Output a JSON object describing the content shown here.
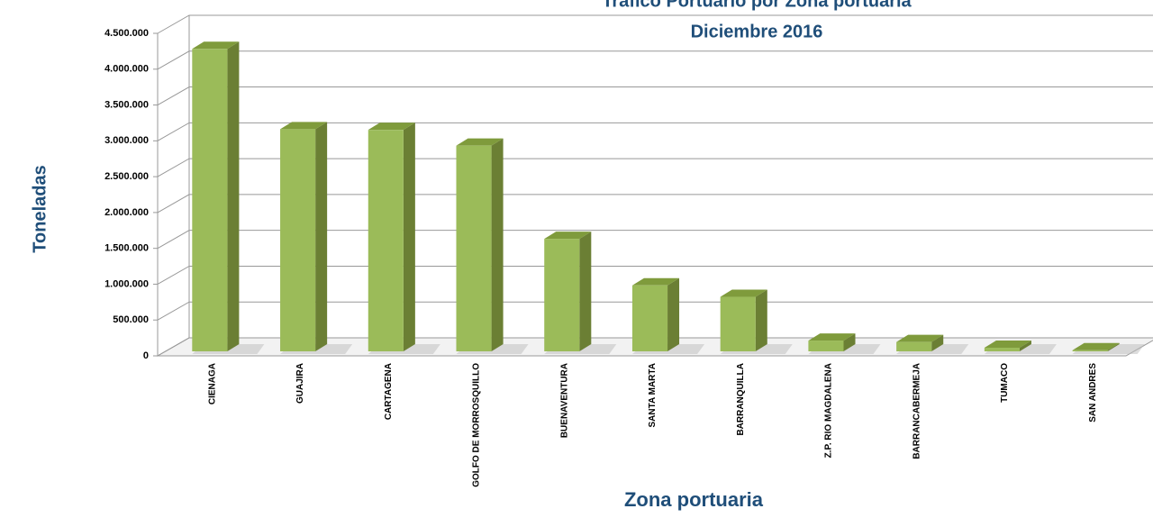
{
  "chart_data": {
    "type": "bar3d",
    "title": "Tráfico Portuario por Zona portuaria",
    "subtitle": "Diciembre 2016",
    "x_label": "Zona portuaria",
    "y_label": "Toneladas",
    "categories": [
      "CIENAGA",
      "GUAJIRA",
      "CARTAGENA",
      "GOLFO DE MORROSQUILLO",
      "BUENAVENTURA",
      "SANTA MARTA",
      "BARRANQUILLA",
      "Z.P. RIO MAGDALENA",
      "BARRANCABERMEJA",
      "TUMACO",
      "SAN ANDRES"
    ],
    "values": [
      4220000,
      3100000,
      3090000,
      2870000,
      1570000,
      920000,
      760000,
      150000,
      130000,
      50000,
      15000
    ],
    "color": "#9bbb59",
    "ylim": [
      0,
      4500000
    ],
    "yticks": [
      0,
      {
        "value": 500000,
        "label": "500.000"
      },
      {
        "value": 1000000,
        "label": "1.000.000"
      },
      {
        "value": 1500000,
        "label": "1.500.000"
      },
      {
        "value": 2000000,
        "label": "2.000.000"
      },
      {
        "value": 2500000,
        "label": "2.500.000"
      },
      {
        "value": 3000000,
        "label": "3.000.000"
      },
      {
        "value": 3500000,
        "label": "3.500.000"
      },
      {
        "value": 4000000,
        "label": "4.000.000"
      },
      {
        "value": 4500000,
        "label": "4.500.000"
      }
    ],
    "grid": true
  }
}
